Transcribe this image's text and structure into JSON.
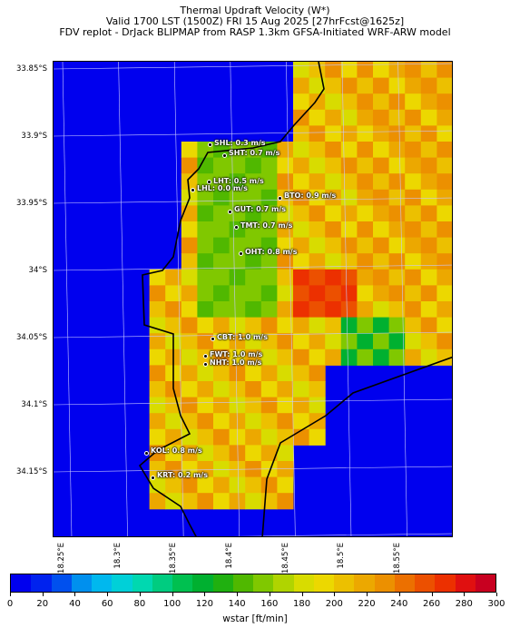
{
  "header": {
    "line1": "Thermal Updraft Velocity (W*)",
    "line2": "Valid 1700 LST (1500Z) FRI 15 Aug 2025 [27hrFcst@1625z]",
    "line3": "FDV replot - DrJack BLIPMAP from RASP 1.3km GFSA-Initiated WRF-ARW model"
  },
  "axes": {
    "y_labels": [
      "33.85°S",
      "33.9°S",
      "33.95°S",
      "34°S",
      "34.05°S",
      "34.1°S",
      "34.15°S"
    ],
    "x_labels": [
      "18.25°E",
      "18.3°E",
      "18.35°E",
      "18.4°E",
      "18.45°E",
      "18.5°E",
      "18.55°E"
    ]
  },
  "sites": [
    {
      "name": "SHL: 0.3 m/s"
    },
    {
      "name": "SHT: 0.7 m/s"
    },
    {
      "name": "LHT: 0.5 m/s"
    },
    {
      "name": "LHL: 0.0 m/s"
    },
    {
      "name": "BTO: 0.9 m/s"
    },
    {
      "name": "GUT: 0.7 m/s"
    },
    {
      "name": "TMT: 0.7 m/s"
    },
    {
      "name": "OHT: 0.8 m/s"
    },
    {
      "name": "CBT: 1.0 m/s"
    },
    {
      "name": "FWT: 1.0 m/s"
    },
    {
      "name": "NHT: 1.0 m/s"
    },
    {
      "name": "KOL: 0.8 m/s"
    },
    {
      "name": "KRT: 0.2 m/s"
    }
  ],
  "colorbar": {
    "label": "wstar [ft/min]",
    "ticks": [
      "0",
      "20",
      "40",
      "60",
      "80",
      "100",
      "120",
      "140",
      "160",
      "180",
      "200",
      "220",
      "240",
      "260",
      "280",
      "300"
    ],
    "colors": [
      "#0000ee",
      "#0022ee",
      "#0050ee",
      "#0090ee",
      "#00b8ee",
      "#00d0d8",
      "#00d8b0",
      "#00cc80",
      "#00c050",
      "#00b030",
      "#20b010",
      "#50b800",
      "#80c800",
      "#b0d400",
      "#d8dc00",
      "#ecd800",
      "#ecc000",
      "#eca800",
      "#ec9000",
      "#ec7000",
      "#ec5000",
      "#ec3000",
      "#e01010",
      "#c80020"
    ]
  }
}
